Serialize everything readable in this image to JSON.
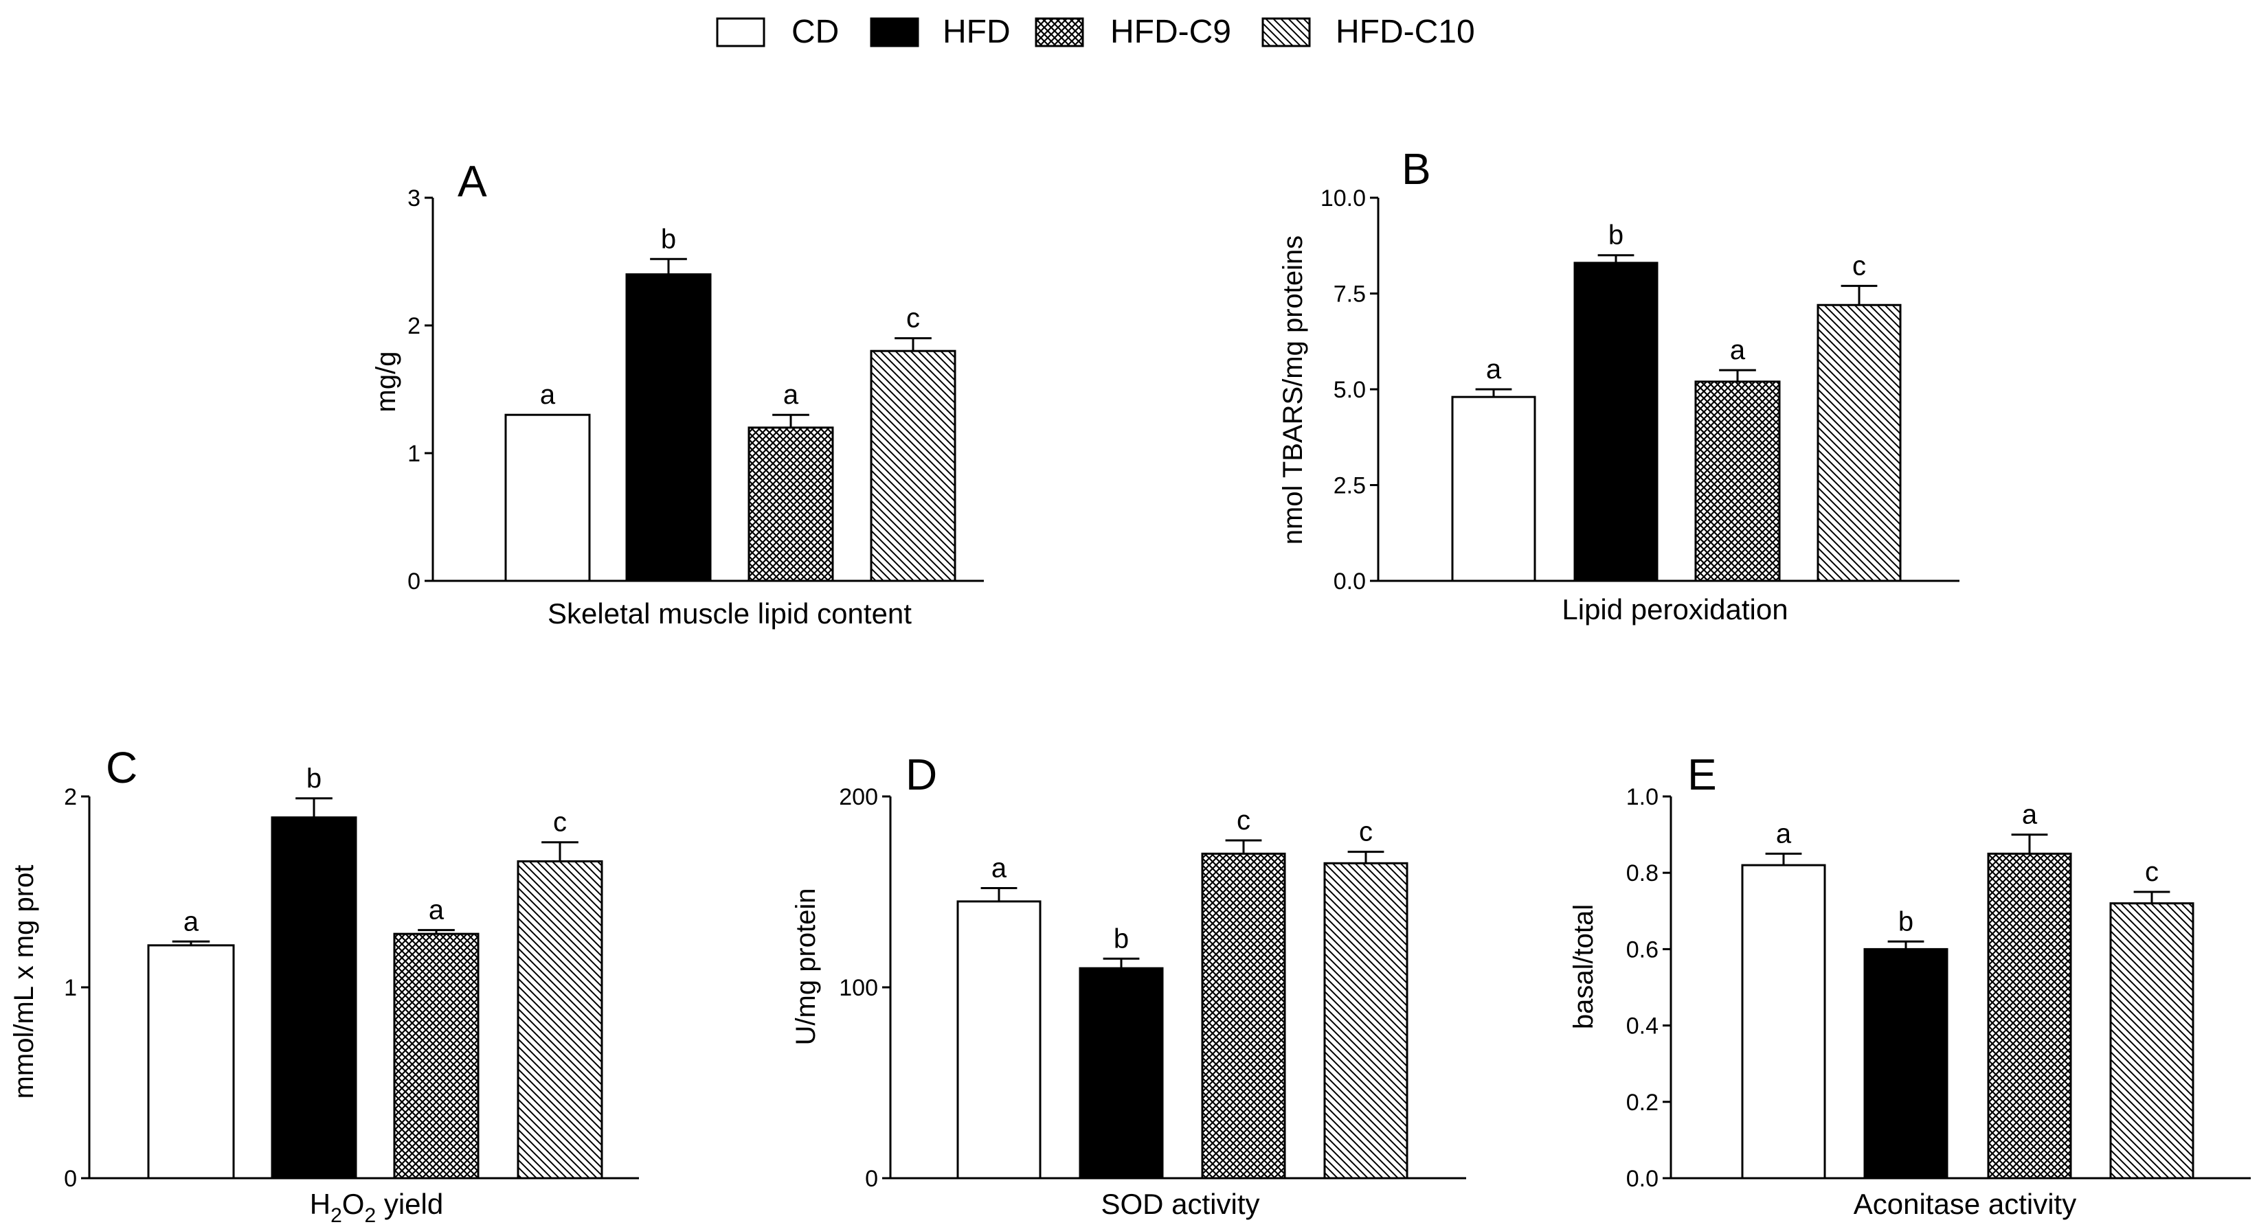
{
  "legend": {
    "items": [
      {
        "label": "CD",
        "pattern": "white"
      },
      {
        "label": "HFD",
        "pattern": "black"
      },
      {
        "label": "HFD-C9",
        "pattern": "crosshatch"
      },
      {
        "label": "HFD-C10",
        "pattern": "diagonal"
      }
    ]
  },
  "colors": {
    "bar_stroke": "#000000",
    "filled": "#000000",
    "empty": "#ffffff"
  },
  "chart_data": [
    {
      "panel": "A",
      "type": "bar",
      "categories": [
        "CD",
        "HFD",
        "HFD-C9",
        "HFD-C10"
      ],
      "values": [
        1.3,
        2.4,
        1.2,
        1.8
      ],
      "errors": [
        0.0,
        0.12,
        0.1,
        0.1
      ],
      "significance": [
        "a",
        "b",
        "a",
        "c"
      ],
      "xlabel": {
        "text": "Skeletal muscle lipid content"
      },
      "ylabel": "mg/g",
      "ylim": [
        0,
        3
      ],
      "yticks": [
        0,
        1,
        2,
        3
      ],
      "ytick_labels": [
        "0",
        "1",
        "2",
        "3"
      ]
    },
    {
      "panel": "B",
      "type": "bar",
      "categories": [
        "CD",
        "HFD",
        "HFD-C9",
        "HFD-C10"
      ],
      "values": [
        4.8,
        8.3,
        5.2,
        7.2
      ],
      "errors": [
        0.2,
        0.2,
        0.3,
        0.5
      ],
      "significance": [
        "a",
        "b",
        "a",
        "c"
      ],
      "xlabel": {
        "text": "Lipid peroxidation"
      },
      "ylabel": "nmol TBARS/mg proteins",
      "ylim": [
        0,
        10
      ],
      "yticks": [
        0,
        2.5,
        5,
        7.5,
        10
      ],
      "ytick_labels": [
        "0.0",
        "2.5",
        "5.0",
        "7.5",
        "10.0"
      ]
    },
    {
      "panel": "C",
      "type": "bar",
      "categories": [
        "CD",
        "HFD",
        "HFD-C9",
        "HFD-C10"
      ],
      "values": [
        1.22,
        1.89,
        1.28,
        1.66
      ],
      "errors": [
        0.02,
        0.1,
        0.02,
        0.1
      ],
      "significance": [
        "a",
        "b",
        "a",
        "c"
      ],
      "xlabel": {
        "prefix": "H",
        "sub1": "2",
        "mid": "O",
        "sub2": "2",
        "suffix": " yield"
      },
      "ylabel": "mmol/mL x mg prot",
      "ylim": [
        0,
        2
      ],
      "yticks": [
        0,
        1,
        2
      ],
      "ytick_labels": [
        "0",
        "1",
        "2"
      ]
    },
    {
      "panel": "D",
      "type": "bar",
      "categories": [
        "CD",
        "HFD",
        "HFD-C9",
        "HFD-C10"
      ],
      "values": [
        145,
        110,
        170,
        165
      ],
      "errors": [
        7,
        5,
        7,
        6
      ],
      "significance": [
        "a",
        "b",
        "c",
        "c"
      ],
      "xlabel": {
        "text": "SOD activity"
      },
      "ylabel": "U/mg protein",
      "ylim": [
        0,
        200
      ],
      "yticks": [
        0,
        100,
        200
      ],
      "ytick_labels": [
        "0",
        "100",
        "200"
      ]
    },
    {
      "panel": "E",
      "type": "bar",
      "categories": [
        "CD",
        "HFD",
        "HFD-C9",
        "HFD-C10"
      ],
      "values": [
        0.82,
        0.6,
        0.85,
        0.72
      ],
      "errors": [
        0.03,
        0.02,
        0.05,
        0.03
      ],
      "significance": [
        "a",
        "b",
        "a",
        "c"
      ],
      "xlabel": {
        "text": "Aconitase activity"
      },
      "ylabel": "basal/total",
      "ylim": [
        0,
        1
      ],
      "yticks": [
        0,
        0.2,
        0.4,
        0.6,
        0.8,
        1.0
      ],
      "ytick_labels": [
        "0.0",
        "0.2",
        "0.4",
        "0.6",
        "0.8",
        "1.0"
      ]
    }
  ]
}
